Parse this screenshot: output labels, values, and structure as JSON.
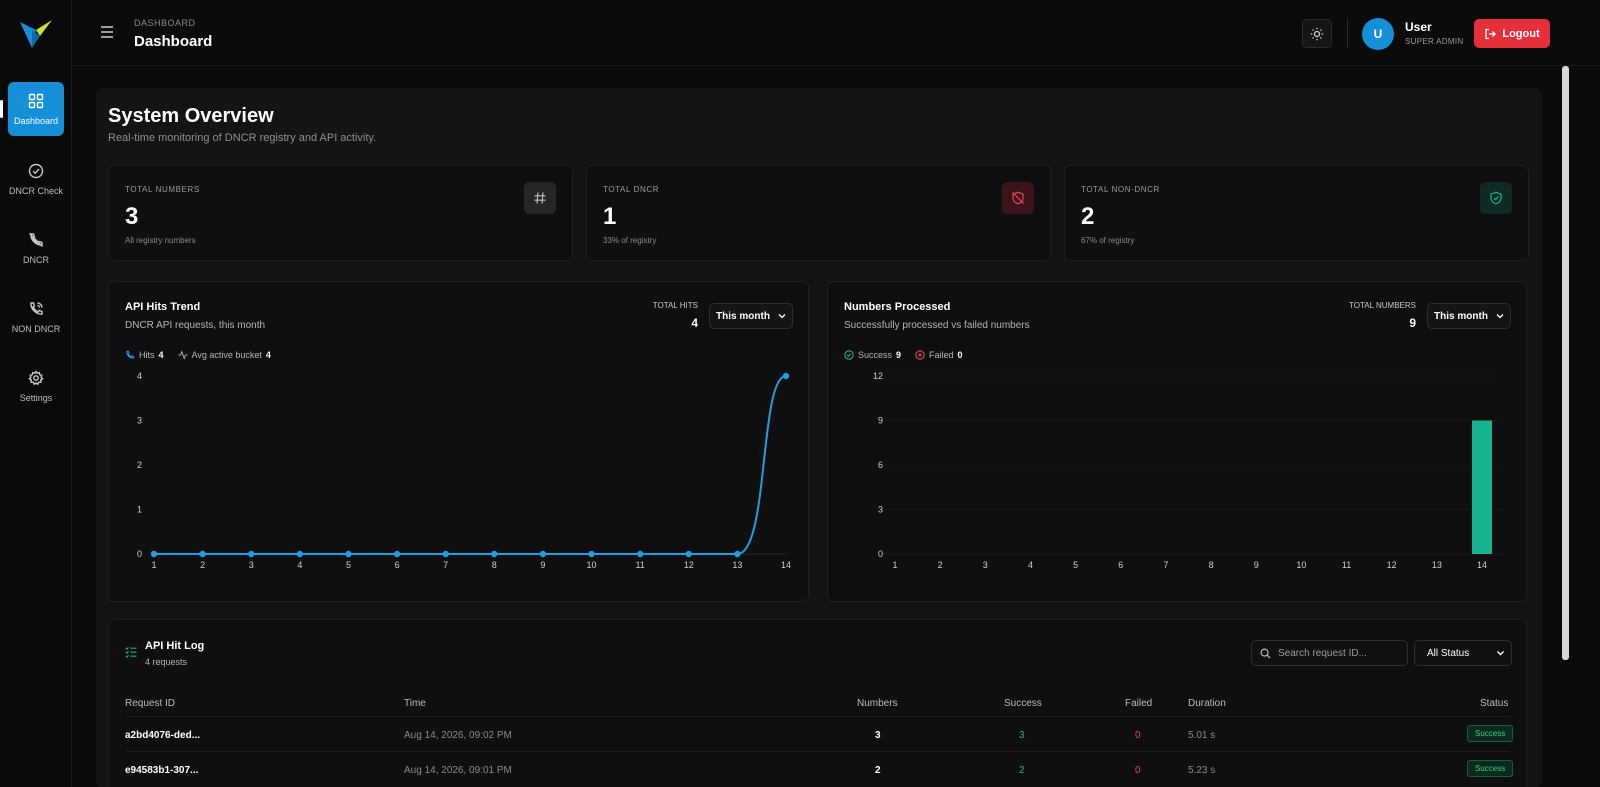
{
  "sidebar": {
    "items": [
      {
        "label": "Dashboard",
        "icon": "grid-icon"
      },
      {
        "label": "DNCR Check",
        "icon": "check-circle-icon"
      },
      {
        "label": "DNCR",
        "icon": "phone-off-icon"
      },
      {
        "label": "NON DNCR",
        "icon": "phone-call-icon"
      },
      {
        "label": "Settings",
        "icon": "gear-icon"
      }
    ]
  },
  "header": {
    "breadcrumb": "DASHBOARD",
    "title": "Dashboard",
    "user_initial": "U",
    "user_name": "User",
    "user_role": "SUPER ADMIN",
    "logout_label": "Logout"
  },
  "overview": {
    "title": "System Overview",
    "subtitle": "Real-time monitoring of DNCR registry and API activity."
  },
  "stats": [
    {
      "label": "TOTAL NUMBERS",
      "value": "3",
      "note": "All registry numbers",
      "icon": "hash-icon"
    },
    {
      "label": "TOTAL DNCR",
      "value": "1",
      "note": "33% of registry",
      "icon": "shield-off-icon"
    },
    {
      "label": "TOTAL NON-DNCR",
      "value": "2",
      "note": "67% of registry",
      "icon": "shield-check-icon"
    }
  ],
  "api_chart": {
    "title": "API Hits Trend",
    "subtitle": "DNCR API requests, this month",
    "total_label": "TOTAL HITS",
    "total_value": "4",
    "period": "This month",
    "legend_hits_label": "Hits",
    "legend_hits_value": "4",
    "legend_avg_label": "Avg active bucket",
    "legend_avg_value": "4"
  },
  "num_chart": {
    "title": "Numbers Processed",
    "subtitle": "Successfully processed vs failed numbers",
    "total_label": "TOTAL NUMBERS",
    "total_value": "9",
    "period": "This month",
    "legend_success_label": "Success",
    "legend_success_value": "9",
    "legend_failed_label": "Failed",
    "legend_failed_value": "0"
  },
  "chart_data": [
    {
      "type": "line",
      "title": "API Hits Trend",
      "x": [
        1,
        2,
        3,
        4,
        5,
        6,
        7,
        8,
        9,
        10,
        11,
        12,
        13,
        14
      ],
      "series": [
        {
          "name": "Hits",
          "values": [
            0,
            0,
            0,
            0,
            0,
            0,
            0,
            0,
            0,
            0,
            0,
            0,
            0,
            4
          ]
        }
      ],
      "yticks": [
        0,
        1,
        2,
        3,
        4
      ],
      "ylim": [
        0,
        4
      ],
      "color": "#1f9ee0"
    },
    {
      "type": "bar",
      "title": "Numbers Processed",
      "x": [
        1,
        2,
        3,
        4,
        5,
        6,
        7,
        8,
        9,
        10,
        11,
        12,
        13,
        14
      ],
      "series": [
        {
          "name": "Success",
          "values": [
            0,
            0,
            0,
            0,
            0,
            0,
            0,
            0,
            0,
            0,
            0,
            0,
            0,
            9
          ]
        },
        {
          "name": "Failed",
          "values": [
            0,
            0,
            0,
            0,
            0,
            0,
            0,
            0,
            0,
            0,
            0,
            0,
            0,
            0
          ]
        }
      ],
      "yticks": [
        0,
        3,
        6,
        9,
        12
      ],
      "ylim": [
        0,
        12
      ],
      "color": "#17b391"
    }
  ],
  "log": {
    "title": "API Hit Log",
    "subtitle": "4 requests",
    "search_placeholder": "Search request ID...",
    "status_filter": "All Status",
    "columns": [
      "Request ID",
      "Time",
      "Numbers",
      "Success",
      "Failed",
      "Duration",
      "Status"
    ],
    "rows": [
      {
        "id": "a2bd4076-ded...",
        "time": "Aug 14, 2026, 09:02 PM",
        "numbers": "3",
        "success": "3",
        "failed": "0",
        "duration": "5.01 s",
        "status": "Success"
      },
      {
        "id": "e94583b1-307...",
        "time": "Aug 14, 2026, 09:01 PM",
        "numbers": "2",
        "success": "2",
        "failed": "0",
        "duration": "5.23 s",
        "status": "Success"
      }
    ]
  },
  "colors": {
    "accent": "#1590d8",
    "danger": "#e5303c",
    "success": "#17b391",
    "failed": "#e5485a"
  }
}
